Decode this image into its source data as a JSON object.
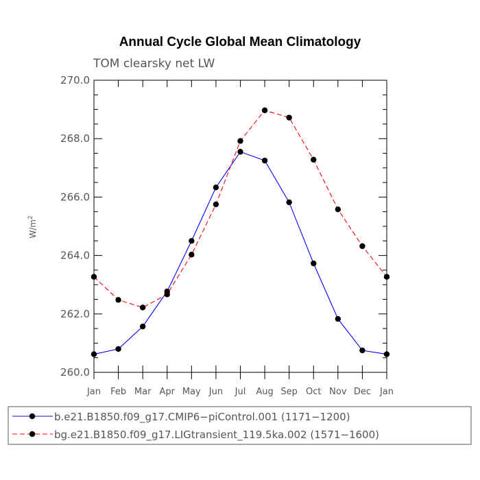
{
  "chart_data": {
    "type": "line",
    "title": "Annual Cycle Global Mean Climatology",
    "subtitle": "TOM clearsky net LW",
    "ylabel_base": "W/m",
    "ylabel_sup": "2",
    "ylim": [
      260.0,
      270.0
    ],
    "yticks": [
      260.0,
      262.0,
      264.0,
      266.0,
      268.0,
      270.0
    ],
    "ytick_labels": [
      "260.0",
      "262.0",
      "264.0",
      "266.0",
      "268.0",
      "270.0"
    ],
    "categories": [
      "Jan",
      "Feb",
      "Mar",
      "Apr",
      "May",
      "Jun",
      "Jul",
      "Aug",
      "Sep",
      "Oct",
      "Nov",
      "Dec",
      "Jan"
    ],
    "series": [
      {
        "name": "b.e21.B1850.f09_g17.CMIP6−piControl.001 (1171−1200)",
        "color": "#0000ff",
        "dash": "solid",
        "marker": "circle",
        "values": [
          260.62,
          260.8,
          261.57,
          262.77,
          264.5,
          266.33,
          267.55,
          267.25,
          265.82,
          263.73,
          261.83,
          260.75,
          260.62
        ]
      },
      {
        "name": "bg.e21.B1850.f09_g17.LIGtransient_119.5ka.002 (1571−1600)",
        "color": "#ff0000",
        "dash": "dashed",
        "marker": "circle",
        "values": [
          263.27,
          262.48,
          262.22,
          262.67,
          264.03,
          265.75,
          267.92,
          268.97,
          268.72,
          267.28,
          265.58,
          264.32,
          263.27
        ]
      }
    ],
    "grid": false,
    "legend": "bottom"
  }
}
